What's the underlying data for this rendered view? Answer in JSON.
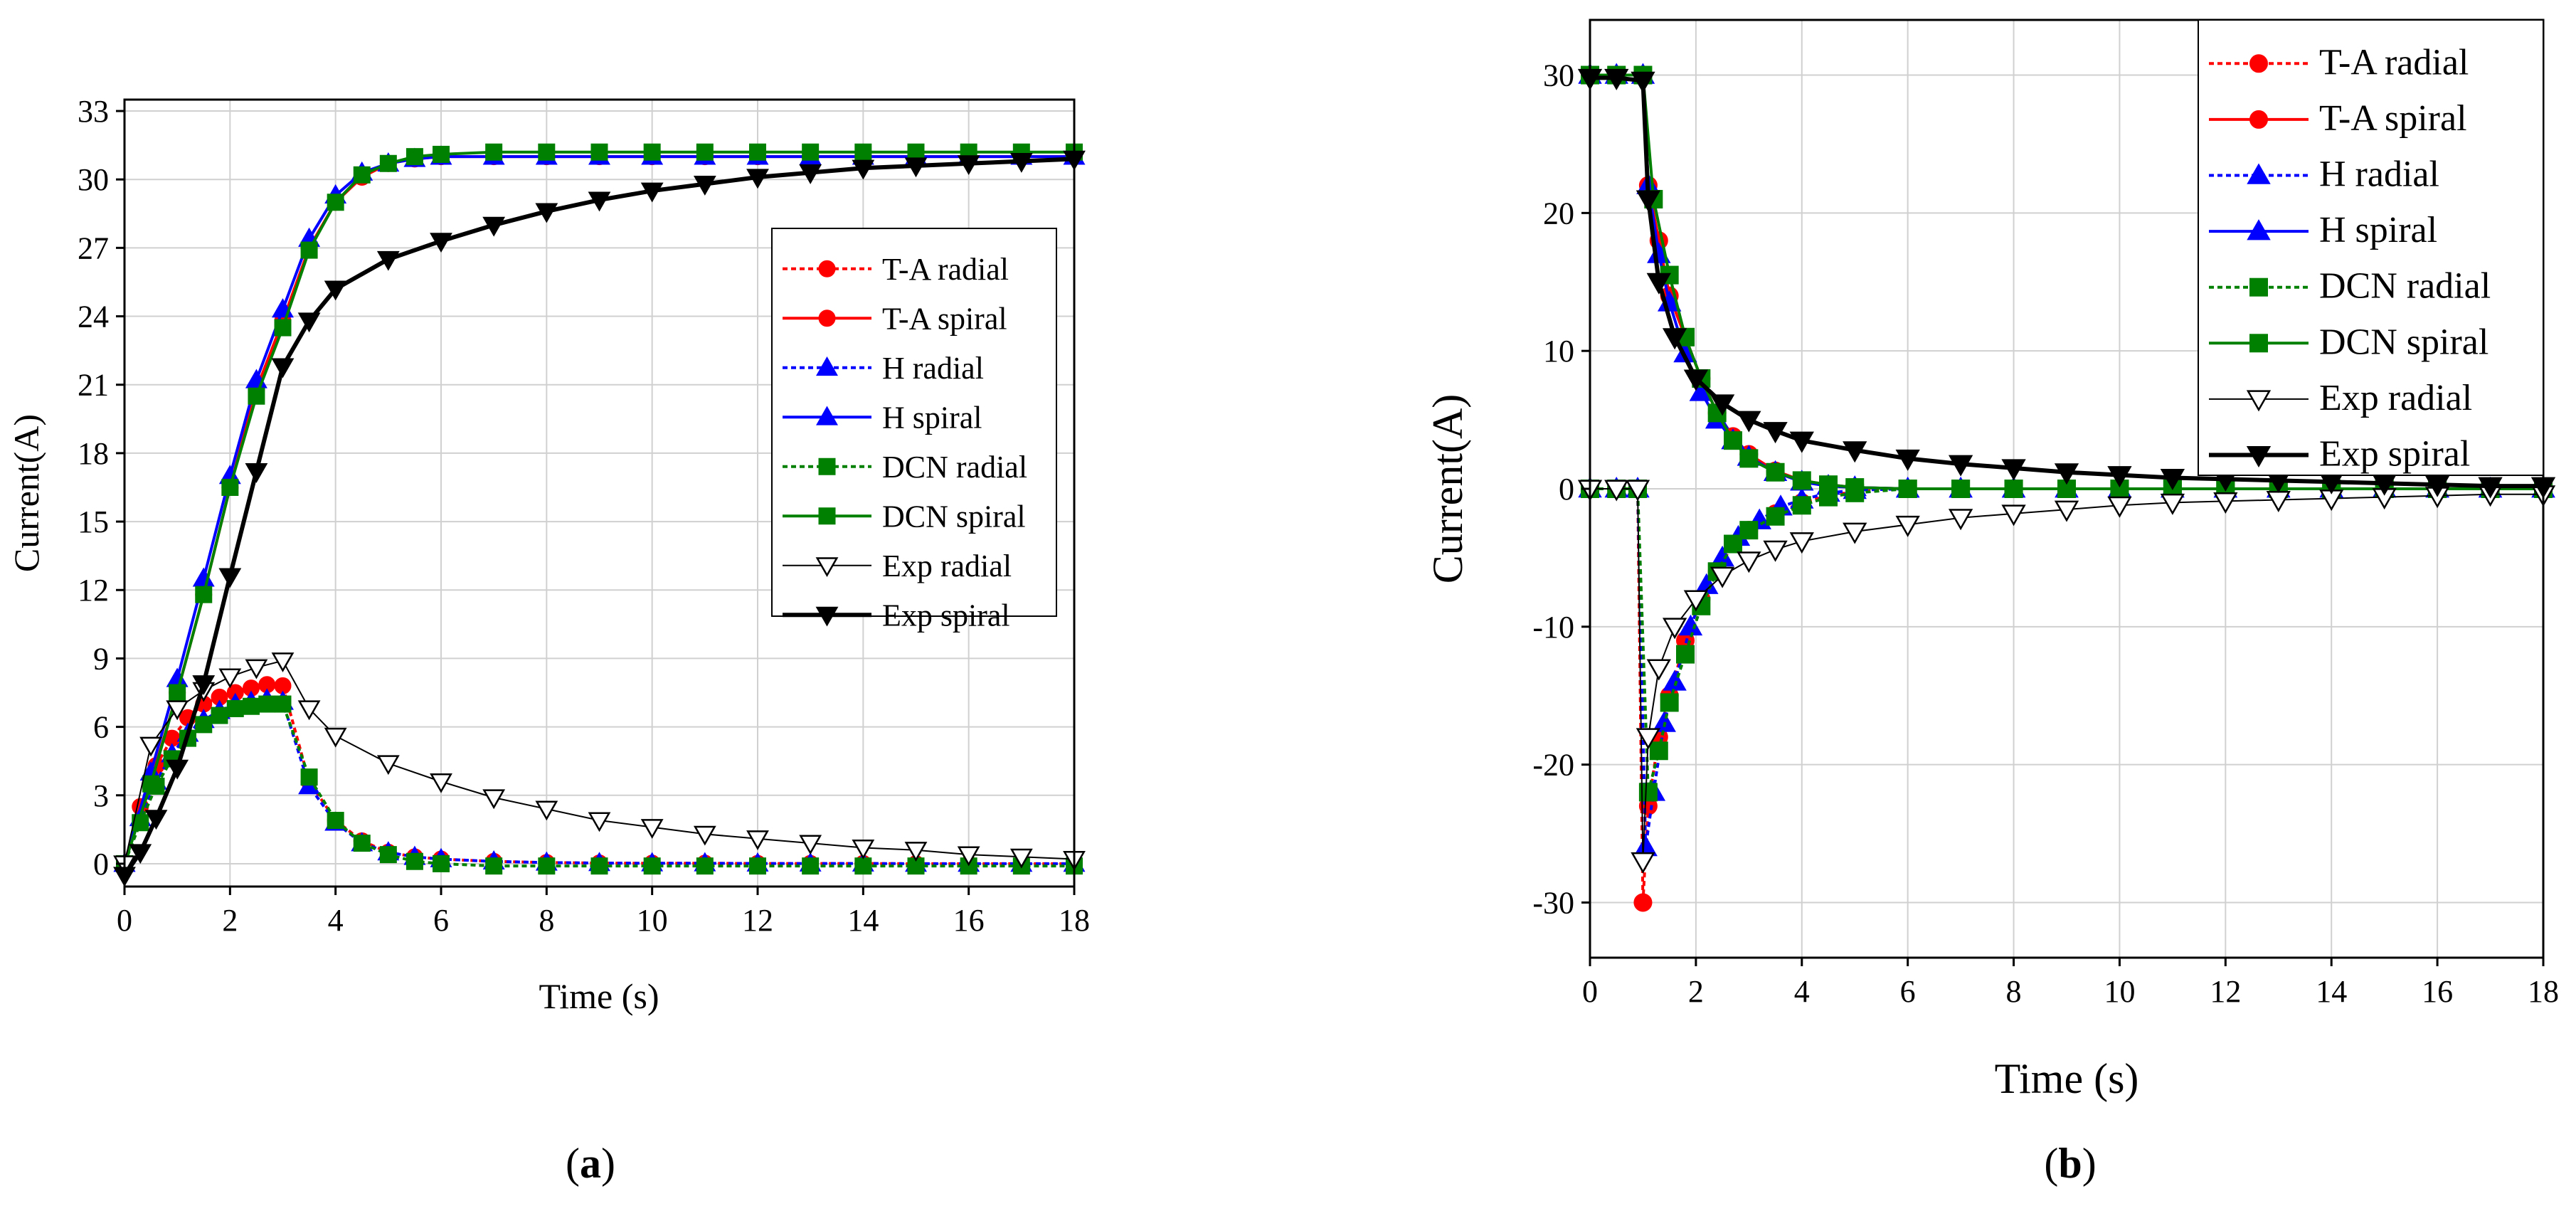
{
  "chart_data": [
    {
      "panel_label": "a",
      "type": "line",
      "xlabel": "Time (s)",
      "ylabel": "Current(A)",
      "xlim": [
        0,
        18
      ],
      "ylim": [
        -1,
        33.5
      ],
      "xticks": [
        0,
        2,
        4,
        6,
        8,
        10,
        12,
        14,
        16,
        18
      ],
      "yticks": [
        0,
        3,
        6,
        9,
        12,
        15,
        18,
        21,
        24,
        27,
        30,
        33
      ],
      "grid": true,
      "legend_position": "center-right",
      "series": [
        {
          "name": "T-A radial",
          "color": "#ff0000",
          "dash": "dotted",
          "marker": "circle",
          "marker_fill": "#ff0000",
          "x": [
            0,
            0.3,
            0.6,
            0.9,
            1.2,
            1.5,
            1.8,
            2.1,
            2.4,
            2.7,
            3.0,
            3.5,
            4.0,
            4.5,
            5.0,
            5.5,
            6.0,
            7,
            8,
            9,
            10,
            11,
            12,
            13,
            14,
            15,
            16,
            17,
            18
          ],
          "y": [
            0,
            2.5,
            4.3,
            5.5,
            6.4,
            7.0,
            7.3,
            7.5,
            7.7,
            7.85,
            7.8,
            3.6,
            1.9,
            1.0,
            0.5,
            0.3,
            0.2,
            0.1,
            0.05,
            0.03,
            0.02,
            0.02,
            0.01,
            0.01,
            0.01,
            0,
            0,
            0,
            0
          ]
        },
        {
          "name": "T-A spiral",
          "color": "#ff0000",
          "dash": "solid",
          "marker": "circle",
          "marker_fill": "#ff0000",
          "x": [
            0,
            0.5,
            1.0,
            1.5,
            2.0,
            2.5,
            3.0,
            3.5,
            4.0,
            4.5,
            5.0,
            5.5,
            6.0,
            7,
            8,
            9,
            10,
            11,
            12,
            13,
            14,
            15,
            16,
            17,
            18
          ],
          "y": [
            0,
            3.6,
            7.5,
            11.8,
            16.5,
            20.8,
            23.8,
            27.0,
            29.0,
            30.1,
            30.7,
            30.9,
            31.0,
            31.0,
            31.0,
            31.0,
            31.0,
            31.0,
            31.0,
            31.0,
            31.0,
            31.0,
            31.0,
            31.0,
            31.0
          ]
        },
        {
          "name": "H radial",
          "color": "#0000ff",
          "dash": "dotted",
          "marker": "triangle-up",
          "marker_fill": "#0000ff",
          "x": [
            0,
            0.3,
            0.6,
            0.9,
            1.2,
            1.5,
            1.8,
            2.1,
            2.4,
            2.7,
            3.0,
            3.5,
            4.0,
            4.5,
            5.0,
            5.5,
            6.0,
            7,
            8,
            9,
            10,
            11,
            12,
            13,
            14,
            15,
            16,
            17,
            18
          ],
          "y": [
            0,
            2.0,
            3.6,
            4.8,
            5.7,
            6.3,
            6.7,
            7.0,
            7.1,
            7.2,
            7.1,
            3.4,
            1.8,
            0.9,
            0.5,
            0.3,
            0.2,
            0.1,
            0.05,
            0.03,
            0.02,
            0.02,
            0.01,
            0.01,
            0.01,
            0,
            0,
            0,
            0
          ]
        },
        {
          "name": "H spiral",
          "color": "#0000ff",
          "dash": "solid",
          "marker": "triangle-up",
          "marker_fill": "#0000ff",
          "x": [
            0,
            0.5,
            1.0,
            1.5,
            2.0,
            2.5,
            3.0,
            3.5,
            4.0,
            4.5,
            5.0,
            5.5,
            6.0,
            7,
            8,
            9,
            10,
            11,
            12,
            13,
            14,
            15,
            16,
            17,
            18
          ],
          "y": [
            0,
            4.0,
            8.1,
            12.5,
            17.0,
            21.2,
            24.3,
            27.4,
            29.3,
            30.3,
            30.7,
            30.9,
            31.0,
            31.0,
            31.0,
            31.0,
            31.0,
            31.0,
            31.0,
            31.0,
            31.0,
            31.0,
            31.0,
            31.0,
            31.0
          ]
        },
        {
          "name": "DCN radial",
          "color": "#008000",
          "dash": "dotted",
          "marker": "square",
          "marker_fill": "#008000",
          "x": [
            0,
            0.3,
            0.6,
            0.9,
            1.2,
            1.5,
            1.8,
            2.1,
            2.4,
            2.7,
            3.0,
            3.5,
            4.0,
            4.5,
            5.0,
            5.5,
            6.0,
            7,
            8,
            9,
            10,
            11,
            12,
            13,
            14,
            15,
            16,
            17,
            18
          ],
          "y": [
            0,
            1.8,
            3.4,
            4.6,
            5.5,
            6.1,
            6.5,
            6.8,
            6.9,
            7.0,
            7.0,
            3.8,
            1.9,
            0.9,
            0.4,
            0.1,
            0,
            -0.1,
            -0.1,
            -0.1,
            -0.1,
            -0.1,
            -0.1,
            -0.1,
            -0.1,
            -0.1,
            -0.1,
            -0.1,
            -0.1
          ]
        },
        {
          "name": "DCN spiral",
          "color": "#008000",
          "dash": "solid",
          "marker": "square",
          "marker_fill": "#008000",
          "x": [
            0,
            0.5,
            1.0,
            1.5,
            2.0,
            2.5,
            3.0,
            3.5,
            4.0,
            4.5,
            5.0,
            5.5,
            6.0,
            7,
            8,
            9,
            10,
            11,
            12,
            13,
            14,
            15,
            16,
            17,
            18
          ],
          "y": [
            0,
            3.5,
            7.5,
            11.8,
            16.5,
            20.5,
            23.5,
            26.9,
            29.0,
            30.2,
            30.7,
            31.0,
            31.1,
            31.2,
            31.2,
            31.2,
            31.2,
            31.2,
            31.2,
            31.2,
            31.2,
            31.2,
            31.2,
            31.2,
            31.2
          ]
        },
        {
          "name": "Exp radial",
          "color": "#000000",
          "dash": "solid",
          "thin": true,
          "marker": "triangle-down",
          "marker_fill": "#ffffff",
          "x": [
            0,
            0.5,
            1.0,
            1.5,
            2.0,
            2.5,
            3.0,
            3.5,
            4.0,
            5,
            6,
            7,
            8,
            9,
            10,
            11,
            12,
            13,
            14,
            15,
            16,
            17,
            18
          ],
          "y": [
            0,
            5.2,
            6.8,
            7.6,
            8.2,
            8.6,
            8.9,
            6.8,
            5.6,
            4.4,
            3.6,
            2.9,
            2.4,
            1.9,
            1.6,
            1.3,
            1.1,
            0.9,
            0.7,
            0.6,
            0.4,
            0.3,
            0.2
          ]
        },
        {
          "name": "Exp spiral",
          "color": "#000000",
          "dash": "solid",
          "thick": true,
          "marker": "triangle-down",
          "marker_fill": "#000000",
          "x": [
            0,
            0.3,
            0.6,
            1.0,
            1.5,
            2.0,
            2.5,
            3.0,
            3.5,
            4.0,
            5,
            6,
            7,
            8,
            9,
            10,
            11,
            12,
            13,
            14,
            15,
            16,
            17,
            18
          ],
          "y": [
            -0.5,
            0.5,
            2.0,
            4.2,
            7.9,
            12.6,
            17.2,
            21.8,
            23.8,
            25.2,
            26.5,
            27.3,
            28.0,
            28.6,
            29.1,
            29.5,
            29.8,
            30.1,
            30.3,
            30.5,
            30.6,
            30.7,
            30.8,
            30.9
          ]
        }
      ]
    },
    {
      "panel_label": "b",
      "type": "line",
      "xlabel": "Time (s)",
      "ylabel": "Current(A)",
      "xlim": [
        0,
        18
      ],
      "ylim": [
        -34,
        34
      ],
      "xticks": [
        0,
        2,
        4,
        6,
        8,
        10,
        12,
        14,
        16,
        18
      ],
      "yticks": [
        -30,
        -20,
        -10,
        0,
        10,
        20,
        30
      ],
      "grid": true,
      "legend_position": "top-right",
      "series": [
        {
          "name": "T-A radial",
          "color": "#ff0000",
          "dash": "dotted",
          "marker": "circle",
          "marker_fill": "#ff0000",
          "x": [
            0,
            0.5,
            0.9,
            1.0,
            1.1,
            1.3,
            1.5,
            1.8,
            2.1,
            2.4,
            2.7,
            3.0,
            3.5,
            4,
            4.5,
            5,
            6,
            7,
            8,
            9,
            10,
            11,
            12,
            13,
            14,
            15,
            16,
            17,
            18
          ],
          "y": [
            0,
            0,
            0,
            -30,
            -23,
            -18,
            -15,
            -11,
            -8,
            -6,
            -4,
            -3,
            -1.8,
            -1.0,
            -0.5,
            -0.2,
            0,
            0,
            0,
            0,
            0,
            0,
            0,
            0,
            0,
            0,
            0,
            0,
            0
          ]
        },
        {
          "name": "T-A spiral",
          "color": "#ff0000",
          "dash": "solid",
          "marker": "circle",
          "marker_fill": "#ff0000",
          "x": [
            0,
            0.5,
            1.0,
            1.1,
            1.3,
            1.5,
            1.8,
            2.1,
            2.4,
            2.7,
            3.0,
            3.5,
            4,
            4.5,
            5,
            6,
            7,
            8,
            9,
            10,
            11,
            12,
            13,
            14,
            15,
            16,
            17,
            18
          ],
          "y": [
            30,
            30,
            30,
            22,
            18,
            14,
            11,
            8,
            5.5,
            3.8,
            2.5,
            1.3,
            0.6,
            0.3,
            0.1,
            0,
            0,
            0,
            0,
            0,
            0,
            0,
            0,
            0,
            0,
            0,
            0,
            0
          ]
        },
        {
          "name": "H radial",
          "color": "#0000ff",
          "dash": "dotted",
          "marker": "triangle-up",
          "marker_fill": "#0000ff",
          "x": [
            0,
            0.5,
            0.9,
            1.05,
            1.2,
            1.4,
            1.6,
            1.9,
            2.2,
            2.5,
            2.8,
            3.2,
            3.6,
            4,
            4.5,
            5,
            6,
            7,
            8,
            9,
            10,
            11,
            12,
            13,
            14,
            15,
            16,
            17,
            18
          ],
          "y": [
            0,
            0,
            0,
            -26,
            -22,
            -17,
            -14,
            -10,
            -7,
            -5,
            -3.5,
            -2.3,
            -1.3,
            -0.8,
            -0.3,
            -0.1,
            0,
            0,
            0,
            0,
            0,
            0,
            0,
            0,
            0,
            0,
            0,
            0,
            0
          ]
        },
        {
          "name": "H spiral",
          "color": "#0000ff",
          "dash": "solid",
          "marker": "triangle-up",
          "marker_fill": "#0000ff",
          "x": [
            0,
            0.5,
            1.0,
            1.1,
            1.3,
            1.5,
            1.8,
            2.1,
            2.4,
            2.7,
            3.0,
            3.5,
            4,
            4.5,
            5,
            6,
            7,
            8,
            9,
            10,
            11,
            12,
            13,
            14,
            15,
            16,
            17,
            18
          ],
          "y": [
            30,
            30,
            30,
            22,
            17,
            13.5,
            9.8,
            7,
            5,
            3.5,
            2.3,
            1.2,
            0.5,
            0.2,
            0.1,
            0,
            0,
            0,
            0,
            0,
            0,
            0,
            0,
            0,
            0,
            0,
            0,
            0
          ]
        },
        {
          "name": "DCN radial",
          "color": "#008000",
          "dash": "dotted",
          "marker": "square",
          "marker_fill": "#008000",
          "x": [
            0,
            0.5,
            0.9,
            1.1,
            1.3,
            1.5,
            1.8,
            2.1,
            2.4,
            2.7,
            3.0,
            3.5,
            4,
            4.5,
            5,
            6,
            7,
            8,
            9,
            10,
            11,
            12,
            13,
            14,
            15,
            16,
            17,
            18
          ],
          "y": [
            0,
            0,
            0,
            -22,
            -19,
            -15.5,
            -12,
            -8.5,
            -6,
            -4,
            -3,
            -2,
            -1.2,
            -0.6,
            -0.3,
            0,
            0,
            0,
            0,
            0,
            0,
            0,
            0,
            0,
            0,
            0,
            0,
            0
          ]
        },
        {
          "name": "DCN spiral",
          "color": "#008000",
          "dash": "solid",
          "marker": "square",
          "marker_fill": "#008000",
          "x": [
            0,
            0.5,
            1.0,
            1.2,
            1.5,
            1.8,
            2.1,
            2.4,
            2.7,
            3.0,
            3.5,
            4,
            4.5,
            5,
            6,
            7,
            8,
            9,
            10,
            11,
            12,
            13,
            14,
            15,
            16,
            17,
            18
          ],
          "y": [
            30,
            30,
            30,
            21,
            15.5,
            11,
            8,
            5.5,
            3.5,
            2.2,
            1.2,
            0.6,
            0.3,
            0.1,
            0,
            0,
            0,
            0,
            0,
            0,
            0,
            0,
            0,
            0,
            0,
            0,
            0
          ]
        },
        {
          "name": "Exp radial",
          "color": "#000000",
          "dash": "solid",
          "thin": true,
          "marker": "triangle-down",
          "marker_fill": "#ffffff",
          "x": [
            0,
            0.5,
            0.9,
            1.0,
            1.1,
            1.3,
            1.6,
            2.0,
            2.5,
            3,
            3.5,
            4,
            5,
            6,
            7,
            8,
            9,
            10,
            11,
            12,
            13,
            14,
            15,
            16,
            17,
            18
          ],
          "y": [
            0,
            0,
            0,
            -27,
            -18,
            -13,
            -10,
            -8,
            -6.3,
            -5.2,
            -4.4,
            -3.8,
            -3.1,
            -2.6,
            -2.1,
            -1.8,
            -1.5,
            -1.2,
            -1.0,
            -0.9,
            -0.8,
            -0.7,
            -0.6,
            -0.5,
            -0.4,
            -0.4
          ]
        },
        {
          "name": "Exp spiral",
          "color": "#000000",
          "dash": "solid",
          "thick": true,
          "marker": "triangle-down",
          "marker_fill": "#000000",
          "x": [
            0,
            0.5,
            1.0,
            1.1,
            1.3,
            1.6,
            2.0,
            2.5,
            3,
            3.5,
            4,
            5,
            6,
            7,
            8,
            9,
            10,
            11,
            12,
            13,
            14,
            15,
            16,
            17,
            18
          ],
          "y": [
            29.8,
            29.8,
            29.6,
            21,
            15,
            11,
            8,
            6.2,
            5.0,
            4.2,
            3.5,
            2.8,
            2.2,
            1.8,
            1.5,
            1.2,
            1.0,
            0.8,
            0.7,
            0.6,
            0.5,
            0.4,
            0.3,
            0.2,
            0.2
          ]
        }
      ]
    }
  ]
}
